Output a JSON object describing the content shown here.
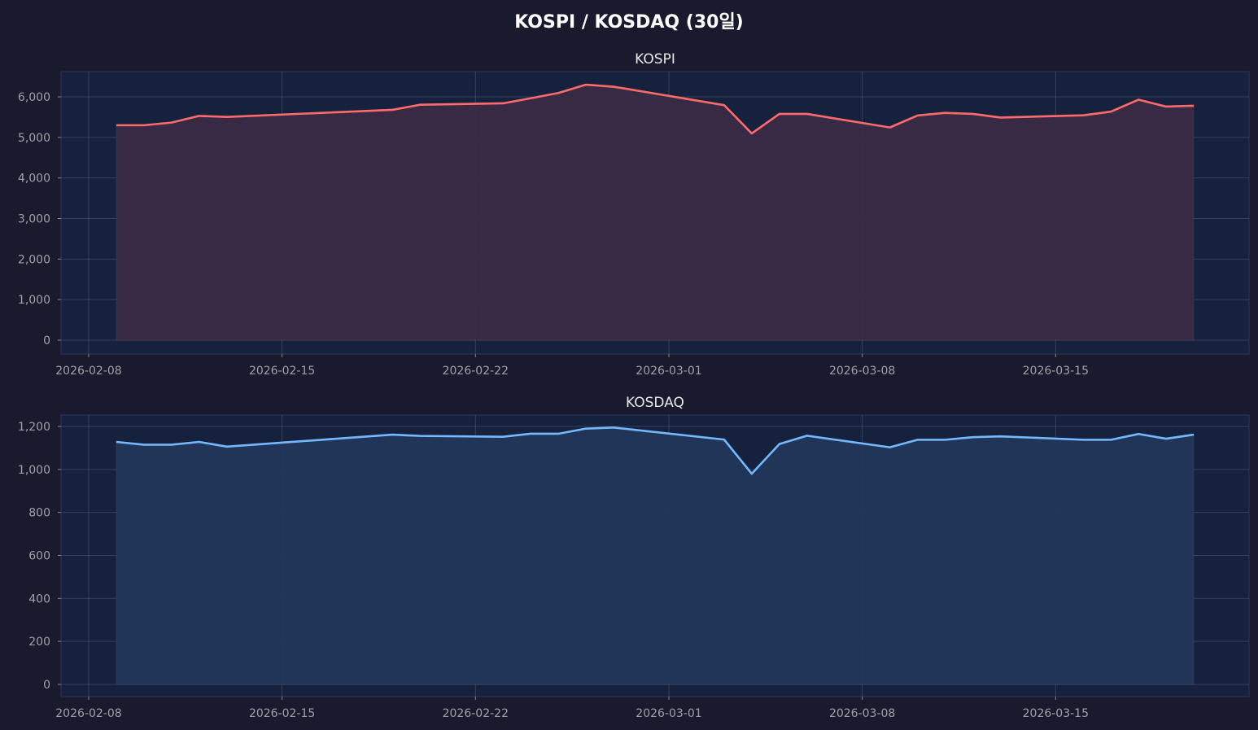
{
  "title": "KOSPI / KOSDAQ (30일)",
  "colors": {
    "background": "#1a1a2e",
    "axes": "#16213e",
    "kospi": "#ff6b6b",
    "kosdaq": "#74b9ff"
  },
  "chart_data": [
    {
      "type": "area",
      "title": "KOSPI",
      "xlabel": "",
      "ylabel": "",
      "ylim": [
        -341,
        6622
      ],
      "xlim": [
        "2026-02-07",
        "2026-03-22"
      ],
      "grid": true,
      "x_ticks": [
        "2026-02-08",
        "2026-02-15",
        "2026-02-22",
        "2026-03-01",
        "2026-03-08",
        "2026-03-15"
      ],
      "y_ticks": [
        0,
        1000,
        2000,
        3000,
        4000,
        5000,
        6000
      ],
      "y_tick_labels": [
        "0",
        "1,000",
        "2,000",
        "3,000",
        "4,000",
        "5,000",
        "6,000"
      ],
      "x": [
        "2026-02-09",
        "2026-02-10",
        "2026-02-11",
        "2026-02-12",
        "2026-02-13",
        "2026-02-19",
        "2026-02-20",
        "2026-02-23",
        "2026-02-24",
        "2026-02-25",
        "2026-02-26",
        "2026-02-27",
        "2026-03-03",
        "2026-03-04",
        "2026-03-05",
        "2026-03-06",
        "2026-03-09",
        "2026-03-10",
        "2026-03-11",
        "2026-03-12",
        "2026-03-13",
        "2026-03-16",
        "2026-03-17",
        "2026-03-18",
        "2026-03-19",
        "2026-03-20"
      ],
      "values": [
        5300,
        5300,
        5365,
        5530,
        5505,
        5680,
        5805,
        5840,
        5965,
        6095,
        6300,
        6250,
        5795,
        5098,
        5580,
        5580,
        5245,
        5540,
        5605,
        5580,
        5490,
        5545,
        5635,
        5930,
        5760,
        5780
      ]
    },
    {
      "type": "area",
      "title": "KOSDAQ",
      "xlabel": "",
      "ylabel": "",
      "ylim": [
        -57,
        1253
      ],
      "xlim": [
        "2026-02-07",
        "2026-03-22"
      ],
      "grid": true,
      "x_ticks": [
        "2026-02-08",
        "2026-02-15",
        "2026-02-22",
        "2026-03-01",
        "2026-03-08",
        "2026-03-15"
      ],
      "y_ticks": [
        0,
        200,
        400,
        600,
        800,
        1000,
        1200
      ],
      "y_tick_labels": [
        "0",
        "200",
        "400",
        "600",
        "800",
        "1,000",
        "1,200"
      ],
      "x": [
        "2026-02-09",
        "2026-02-10",
        "2026-02-11",
        "2026-02-12",
        "2026-02-13",
        "2026-02-19",
        "2026-02-20",
        "2026-02-23",
        "2026-02-24",
        "2026-02-25",
        "2026-02-26",
        "2026-02-27",
        "2026-03-03",
        "2026-03-04",
        "2026-03-05",
        "2026-03-06",
        "2026-03-09",
        "2026-03-10",
        "2026-03-11",
        "2026-03-12",
        "2026-03-13",
        "2026-03-16",
        "2026-03-17",
        "2026-03-18",
        "2026-03-19",
        "2026-03-20"
      ],
      "values": [
        1128,
        1115,
        1115,
        1128,
        1106,
        1162,
        1156,
        1152,
        1166,
        1166,
        1190,
        1195,
        1139,
        980,
        1118,
        1157,
        1103,
        1138,
        1138,
        1150,
        1154,
        1138,
        1138,
        1165,
        1143,
        1162
      ]
    }
  ]
}
